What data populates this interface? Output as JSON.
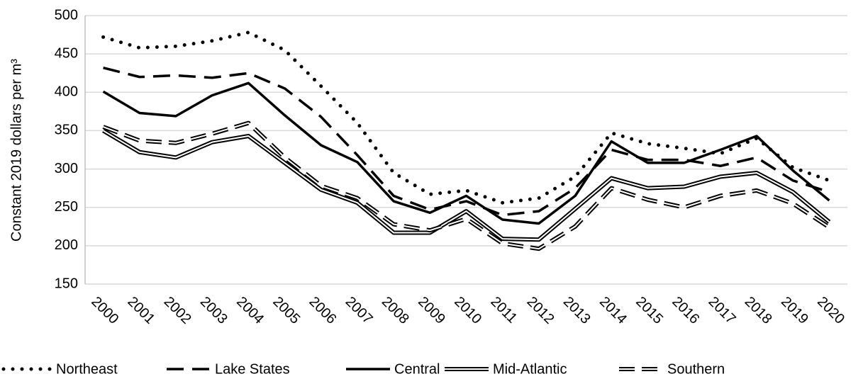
{
  "chart_data": {
    "type": "line",
    "y_label": "Constant 2019 dollars per m³",
    "categories": [
      "2000",
      "2001",
      "2002",
      "2003",
      "2004",
      "2005",
      "2006",
      "2007",
      "2008",
      "2009",
      "2010",
      "2011",
      "2012",
      "2013",
      "2014",
      "2015",
      "2016",
      "2017",
      "2018",
      "2019",
      "2020"
    ],
    "ylim": [
      150,
      500
    ],
    "yticks": [
      150,
      200,
      250,
      300,
      350,
      400,
      450,
      500
    ],
    "grid": true,
    "legend": "bottom",
    "series": [
      {
        "name": "Northeast",
        "color": "#000000",
        "style": "dotted",
        "values": [
          472,
          458,
          460,
          467,
          478,
          455,
          408,
          360,
          295,
          267,
          272,
          256,
          262,
          290,
          347,
          333,
          327,
          320,
          340,
          302,
          285
        ]
      },
      {
        "name": "Lake States",
        "color": "#000000",
        "style": "dashed",
        "values": [
          432,
          420,
          422,
          419,
          425,
          405,
          368,
          318,
          265,
          247,
          258,
          240,
          245,
          275,
          325,
          312,
          312,
          304,
          315,
          285,
          270
        ]
      },
      {
        "name": "Central",
        "color": "#000000",
        "style": "solid",
        "values": [
          401,
          373,
          369,
          396,
          412,
          370,
          331,
          309,
          258,
          243,
          265,
          234,
          229,
          265,
          336,
          308,
          308,
          325,
          343,
          298,
          259
        ]
      },
      {
        "name": "Mid-Atlantic",
        "color": "#000000",
        "style": "double",
        "values": [
          350,
          322,
          315,
          335,
          343,
          308,
          273,
          256,
          217,
          217,
          245,
          209,
          208,
          248,
          288,
          275,
          277,
          290,
          295,
          270,
          231
        ]
      },
      {
        "name": "Southern",
        "color": "#000000",
        "style": "double-dashed",
        "values": [
          355,
          337,
          334,
          346,
          360,
          315,
          278,
          262,
          228,
          220,
          235,
          203,
          196,
          225,
          275,
          260,
          250,
          265,
          272,
          255,
          224
        ]
      }
    ]
  }
}
